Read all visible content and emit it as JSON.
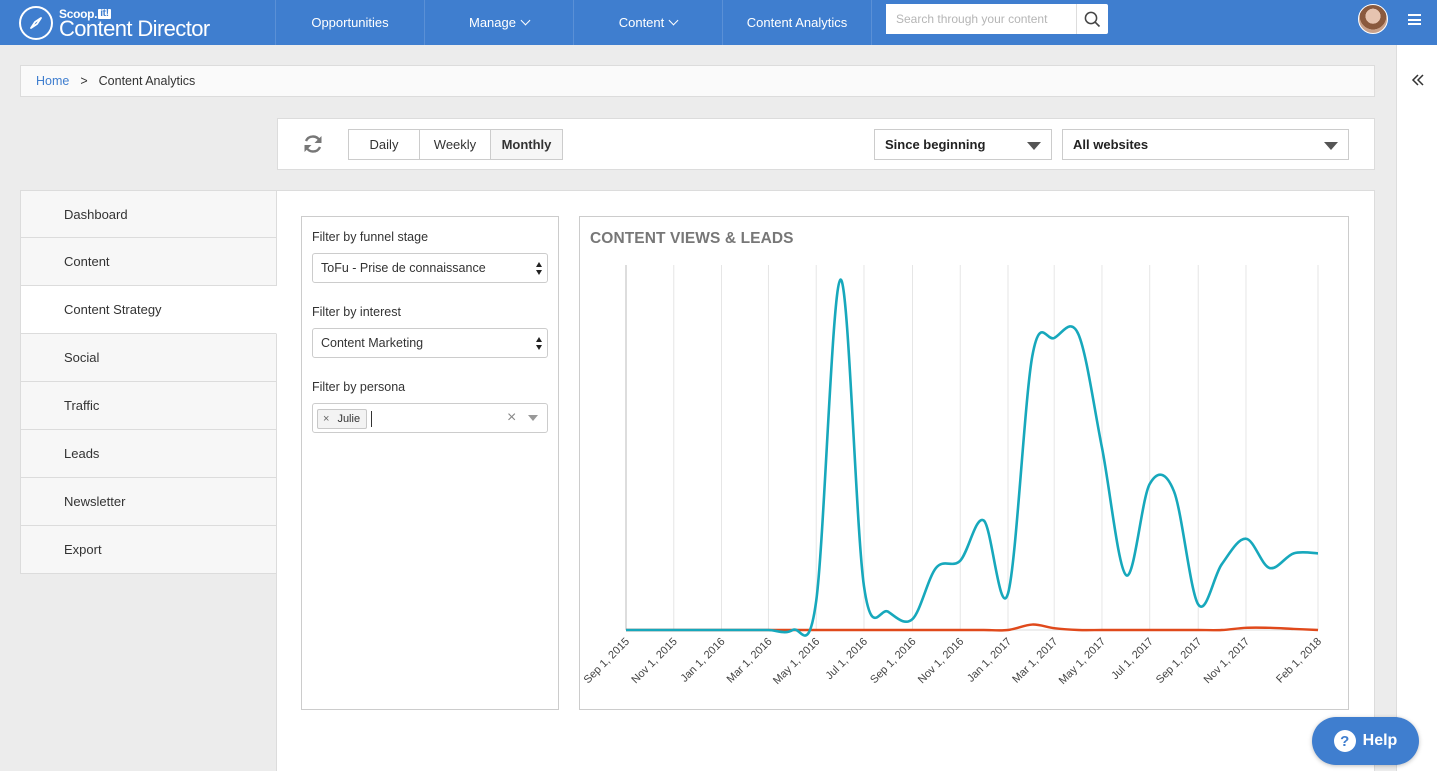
{
  "brand": {
    "small": "Scoop.",
    "small_badge": "it!",
    "name": "Content Director"
  },
  "nav": [
    {
      "label": "Opportunities",
      "has_dropdown": false
    },
    {
      "label": "Manage",
      "has_dropdown": true
    },
    {
      "label": "Content",
      "has_dropdown": true
    },
    {
      "label": "Content Analytics",
      "has_dropdown": false
    }
  ],
  "search": {
    "placeholder": "Search through your content",
    "value": "",
    "icon": "search-icon"
  },
  "breadcrumb": {
    "home": "Home",
    "separator": ">",
    "current": "Content Analytics"
  },
  "toolbar": {
    "periods": [
      "Daily",
      "Weekly",
      "Monthly"
    ],
    "active_period": "Monthly",
    "range": "Since beginning",
    "website": "All websites"
  },
  "sidebar": [
    {
      "label": "Dashboard",
      "active": false
    },
    {
      "label": "Content",
      "active": false
    },
    {
      "label": "Content Strategy",
      "active": true
    },
    {
      "label": "Social",
      "active": false
    },
    {
      "label": "Traffic",
      "active": false
    },
    {
      "label": "Leads",
      "active": false
    },
    {
      "label": "Newsletter",
      "active": false
    },
    {
      "label": "Export",
      "active": false
    }
  ],
  "filters": {
    "funnel_label": "Filter by funnel stage",
    "funnel_value": "ToFu - Prise de connaissance",
    "interest_label": "Filter by interest",
    "interest_value": "Content Marketing",
    "persona_label": "Filter by persona",
    "persona_tags": [
      "Julie"
    ],
    "tag_remove": "×",
    "clear": "×"
  },
  "colors": {
    "brand": "#3f7ecf",
    "views": "#17a8bc",
    "leads": "#e0491b"
  },
  "help": {
    "label": "Help",
    "icon": "?"
  },
  "chart_data": {
    "type": "line",
    "title": "CONTENT VIEWS & LEADS",
    "xlabel": "",
    "ylabel": "",
    "x_ticks": [
      "Sep 1, 2015",
      "Nov 1, 2015",
      "Jan 1, 2016",
      "Mar 1, 2016",
      "May 1, 2016",
      "Jul 1, 2016",
      "Sep 1, 2016",
      "Nov 1, 2016",
      "Jan 1, 2017",
      "Mar 1, 2017",
      "May 1, 2017",
      "Jul 1, 2017",
      "Sep 1, 2017",
      "Nov 1, 2017",
      "Feb 1, 2018"
    ],
    "x": [
      "2015-09-01",
      "2015-10-01",
      "2015-11-01",
      "2015-12-01",
      "2016-01-01",
      "2016-02-01",
      "2016-03-01",
      "2016-04-01",
      "2016-05-01",
      "2016-06-01",
      "2016-07-01",
      "2016-08-01",
      "2016-09-01",
      "2016-10-01",
      "2016-11-01",
      "2016-12-01",
      "2017-01-01",
      "2017-02-01",
      "2017-03-01",
      "2017-04-01",
      "2017-05-01",
      "2017-06-01",
      "2017-07-01",
      "2017-08-01",
      "2017-09-01",
      "2017-10-01",
      "2017-11-01",
      "2017-12-01",
      "2018-01-01",
      "2018-02-01"
    ],
    "series": [
      {
        "name": "",
        "color": "#17a8bc",
        "values": [
          0,
          0,
          0,
          0,
          0,
          0,
          0,
          0,
          8,
          96,
          12,
          5,
          3,
          17,
          19,
          30,
          10,
          75,
          80,
          81,
          50,
          15,
          40,
          38,
          7,
          18,
          25,
          17,
          21,
          21
        ]
      },
      {
        "name": "",
        "color": "#e0491b",
        "values": [
          0,
          0,
          0,
          0,
          0,
          0,
          0,
          0,
          0,
          0,
          0,
          0,
          0,
          0,
          0,
          0,
          0,
          1.5,
          0.5,
          0,
          0,
          0,
          0,
          0,
          0,
          0,
          0.6,
          0.6,
          0.3,
          0
        ]
      }
    ],
    "ylim": [
      0,
      100
    ],
    "grid": "vertical",
    "legend": "none"
  }
}
